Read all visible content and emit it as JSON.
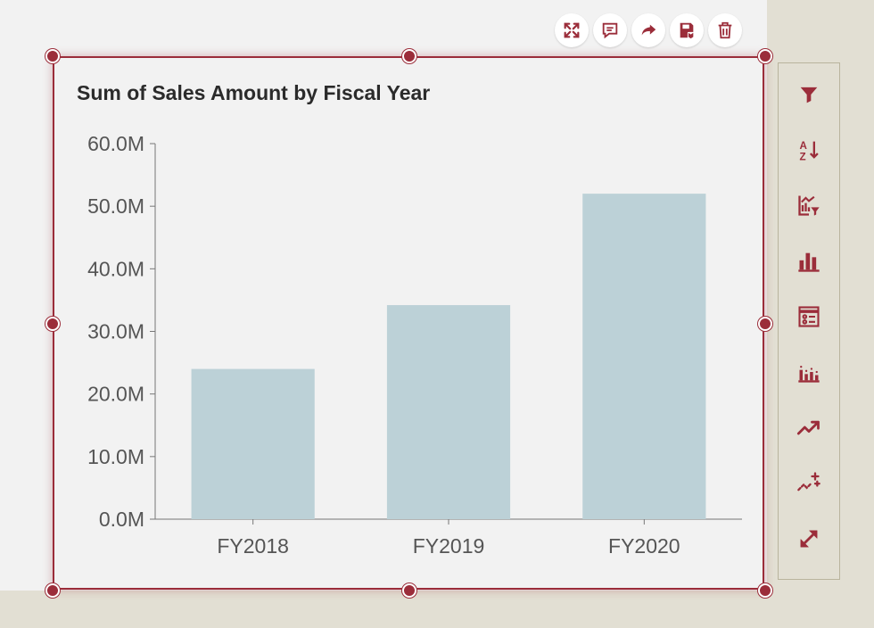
{
  "colors": {
    "accent": "#9b2d3a",
    "bar": "#bcd1d7",
    "panel": "#e2dfd3",
    "canvas": "#f2f2f2"
  },
  "top_actions": [
    {
      "name": "focus-mode-button",
      "icon": "expand-arrows-icon"
    },
    {
      "name": "comment-button",
      "icon": "comment-icon"
    },
    {
      "name": "share-button",
      "icon": "share-arrow-icon"
    },
    {
      "name": "save-button",
      "icon": "save-icon"
    },
    {
      "name": "delete-button",
      "icon": "trash-icon"
    }
  ],
  "side_toolbar": [
    {
      "name": "filter-button",
      "icon": "filter-icon"
    },
    {
      "name": "sort-button",
      "icon": "sort-az-icon"
    },
    {
      "name": "chart-filter-button",
      "icon": "chart-filter-icon"
    },
    {
      "name": "chart-type-button",
      "icon": "bar-chart-icon"
    },
    {
      "name": "format-button",
      "icon": "format-list-icon"
    },
    {
      "name": "chart-options-button",
      "icon": "dotted-bar-chart-icon"
    },
    {
      "name": "trend-button",
      "icon": "trend-line-icon"
    },
    {
      "name": "insights-button",
      "icon": "sparkle-trend-icon"
    },
    {
      "name": "resize-button",
      "icon": "diagonal-resize-icon"
    }
  ],
  "chart_data": {
    "type": "bar",
    "title": "Sum of Sales Amount by Fiscal Year",
    "categories": [
      "FY2018",
      "FY2019",
      "FY2020"
    ],
    "values": [
      24.0,
      34.2,
      52.0
    ],
    "unit_suffix": "M",
    "ylim": [
      0,
      60
    ],
    "yticks": [
      "0.0M",
      "10.0M",
      "20.0M",
      "30.0M",
      "40.0M",
      "50.0M",
      "60.0M"
    ],
    "xlabel": "",
    "ylabel": "",
    "grid": false,
    "legend": "none"
  }
}
